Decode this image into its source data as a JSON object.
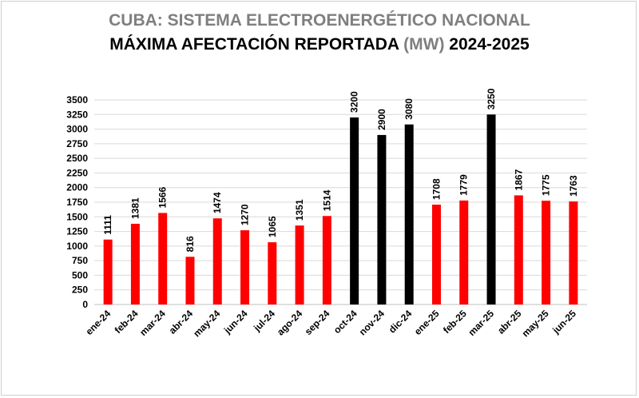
{
  "title": {
    "line1": "CUBA: SISTEMA ELECTROENERGÉTICO  NACIONAL",
    "line2_pre": "MÁXIMA AFECTACIÓN REPORTADA ",
    "line2_unit": "(MW)",
    "line2_post": " 2024-2025"
  },
  "chart_data": {
    "type": "bar",
    "title": "CUBA: SISTEMA ELECTROENERGÉTICO NACIONAL — MÁXIMA AFECTACIÓN REPORTADA (MW) 2024-2025",
    "categories": [
      "ene-24",
      "feb-24",
      "mar-24",
      "abr-24",
      "may-24",
      "jun-24",
      "jul-24",
      "ago-24",
      "sep-24",
      "oct-24",
      "nov-24",
      "dic-24",
      "ene-25",
      "feb-25",
      "mar-25",
      "abr-25",
      "may-25",
      "jun-25"
    ],
    "values": [
      1111,
      1381,
      1566,
      816,
      1474,
      1270,
      1065,
      1351,
      1514,
      3200,
      2900,
      3080,
      1708,
      1779,
      3250,
      1867,
      1775,
      1763
    ],
    "ylim": [
      0,
      3500
    ],
    "yticks": [
      0,
      250,
      500,
      750,
      1000,
      1250,
      1500,
      1750,
      2000,
      2250,
      2500,
      2750,
      3000,
      3250,
      3500
    ],
    "grid": true,
    "legend": "none",
    "colors": {
      "default": "#ff0000",
      "highlight": "#000000"
    },
    "highlighted_categories": [
      "oct-24",
      "nov-24",
      "dic-24",
      "mar-25"
    ]
  }
}
